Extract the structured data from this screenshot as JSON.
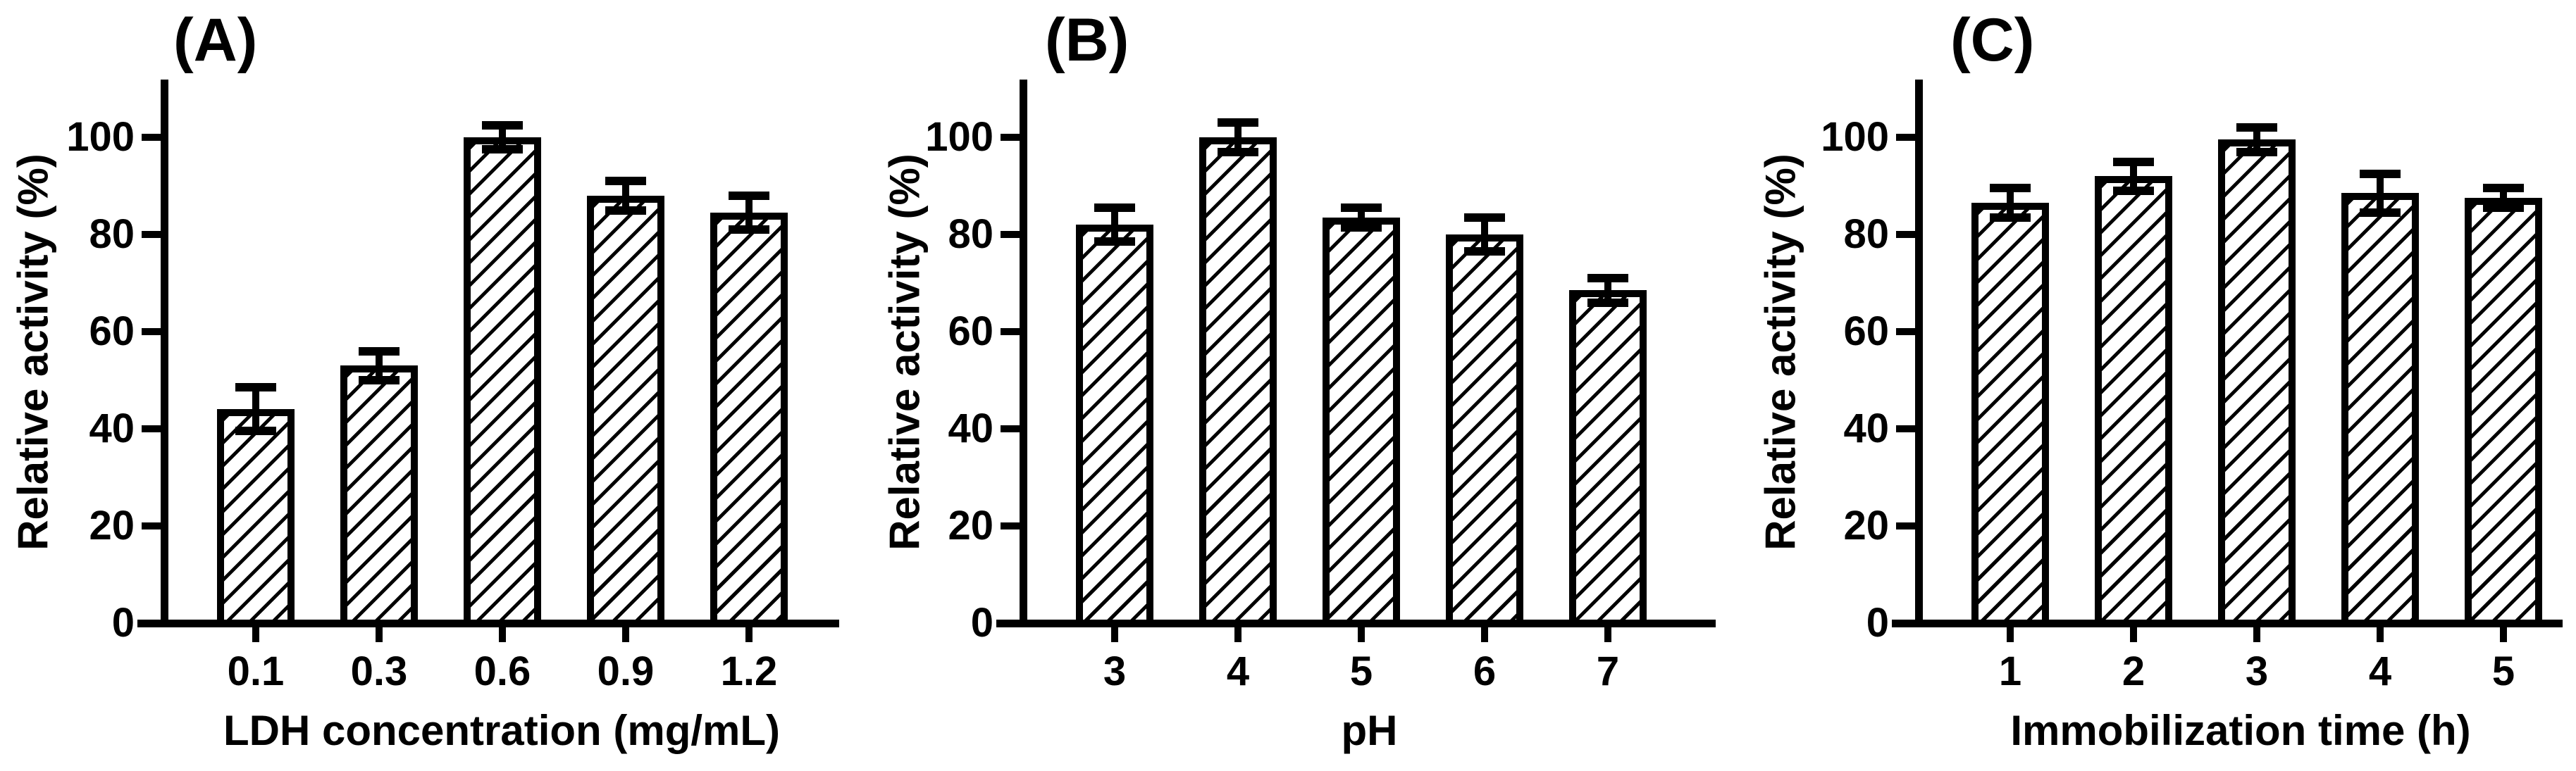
{
  "figure": {
    "background_color": "#ffffff",
    "ink_color": "#000000",
    "description_visible_text_only": true
  },
  "chart_data": [
    {
      "type": "bar",
      "panel_label": "(A)",
      "title": "",
      "xlabel": "LDH concentration (mg/mL)",
      "ylabel": "Relative activity (%)",
      "categories": [
        "0.1",
        "0.3",
        "0.6",
        "0.9",
        "1.2"
      ],
      "values": [
        44,
        53,
        100,
        88,
        84.5
      ],
      "errors": [
        4.5,
        3,
        2.5,
        3,
        3.5
      ],
      "yticks": [
        0,
        20,
        40,
        60,
        80,
        100
      ],
      "ylim": [
        0,
        110
      ],
      "grid": false,
      "legend": null,
      "bar_fill": "diagonal-hatch",
      "bar_color": "#000000",
      "error_bars": "T-caps-above-and-below"
    },
    {
      "type": "bar",
      "panel_label": "(B)",
      "title": "",
      "xlabel": "pH",
      "ylabel": "Relative activity (%)",
      "categories": [
        "3",
        "4",
        "5",
        "6",
        "7"
      ],
      "values": [
        82,
        100,
        83.5,
        80,
        68.5
      ],
      "errors": [
        3.5,
        3,
        2,
        3.5,
        2.5
      ],
      "yticks": [
        0,
        20,
        40,
        60,
        80,
        100
      ],
      "ylim": [
        0,
        110
      ],
      "grid": false,
      "legend": null,
      "bar_fill": "diagonal-hatch",
      "bar_color": "#000000",
      "error_bars": "T-caps-above-and-below"
    },
    {
      "type": "bar",
      "panel_label": "(C)",
      "title": "",
      "xlabel": "Immobilization time (h)",
      "ylabel": "Relative activity (%)",
      "categories": [
        "1",
        "2",
        "3",
        "4",
        "5"
      ],
      "values": [
        86.5,
        92,
        99.5,
        88.5,
        87.5
      ],
      "errors": [
        3,
        3,
        2.5,
        4,
        2
      ],
      "yticks": [
        0,
        20,
        40,
        60,
        80,
        100
      ],
      "ylim": [
        0,
        110
      ],
      "grid": false,
      "legend": null,
      "bar_fill": "diagonal-hatch",
      "bar_color": "#000000",
      "error_bars": "T-caps-above-and-below"
    }
  ]
}
